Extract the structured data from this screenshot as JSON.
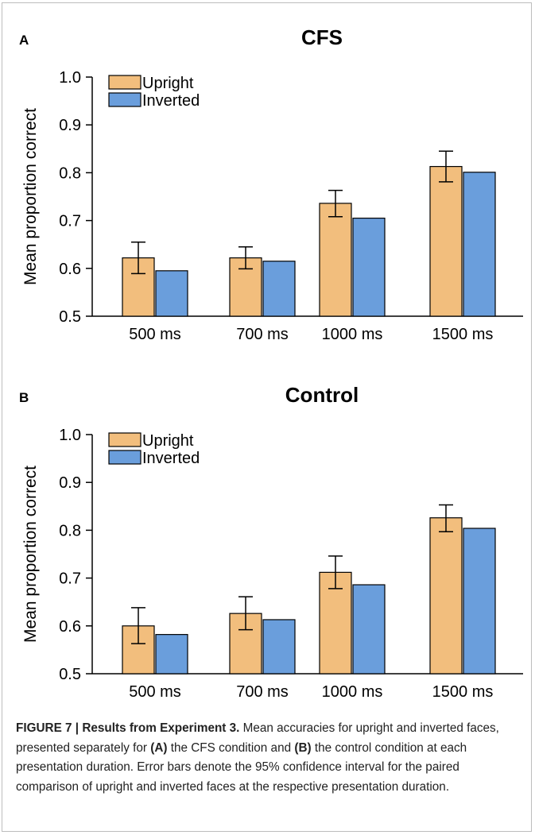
{
  "figure": {
    "caption_label": "FIGURE 7 | Results from Experiment 3.",
    "caption_parts": [
      " Mean accuracies for upright and inverted faces, presented separately for ",
      "(A)",
      " the CFS condition and ",
      "(B)",
      " the control condition at each presentation duration. Error bars denote the 95% confidence interval for the paired comparison of upright and inverted faces at the respective presentation duration."
    ]
  },
  "colors": {
    "upright": "#F2BE7D",
    "inverted": "#6A9EDC"
  },
  "chart_data": [
    {
      "type": "bar",
      "panel_label": "A",
      "title": "CFS",
      "ylabel": "Mean proportion correct",
      "ylim": [
        0.5,
        1.0
      ],
      "yticks": [
        "0.5",
        "0.6",
        "0.7",
        "0.8",
        "0.9",
        "1.0"
      ],
      "categories": [
        "500 ms",
        "700 ms",
        "1000 ms",
        "1500 ms"
      ],
      "legend_position": "top-left",
      "series": [
        {
          "name": "Upright",
          "values": [
            0.622,
            0.622,
            0.736,
            0.813
          ],
          "error": [
            [
              0.589,
              0.655
            ],
            [
              0.599,
              0.645
            ],
            [
              0.708,
              0.763
            ],
            [
              0.781,
              0.845
            ]
          ]
        },
        {
          "name": "Inverted",
          "values": [
            0.595,
            0.615,
            0.705,
            0.801
          ]
        }
      ]
    },
    {
      "type": "bar",
      "panel_label": "B",
      "title": "Control",
      "ylabel": "Mean proportion correct",
      "ylim": [
        0.5,
        1.0
      ],
      "yticks": [
        "0.5",
        "0.6",
        "0.7",
        "0.8",
        "0.9",
        "1.0"
      ],
      "categories": [
        "500 ms",
        "700 ms",
        "1000 ms",
        "1500 ms"
      ],
      "legend_position": "top-left",
      "series": [
        {
          "name": "Upright",
          "values": [
            0.6,
            0.626,
            0.712,
            0.826
          ],
          "error": [
            [
              0.563,
              0.638
            ],
            [
              0.592,
              0.661
            ],
            [
              0.678,
              0.746
            ],
            [
              0.797,
              0.853
            ]
          ]
        },
        {
          "name": "Inverted",
          "values": [
            0.582,
            0.613,
            0.686,
            0.804
          ]
        }
      ]
    }
  ]
}
